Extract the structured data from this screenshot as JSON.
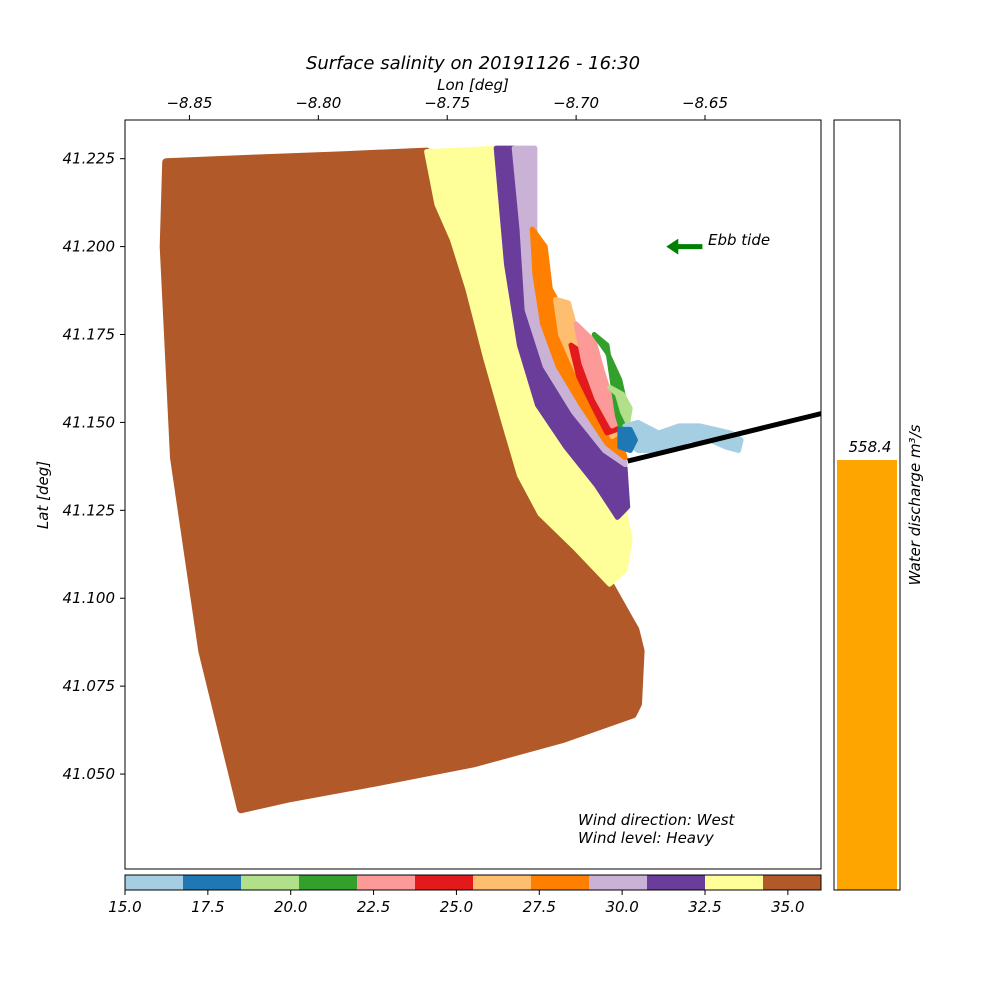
{
  "chart_data": [
    {
      "type": "scatter",
      "title": "Surface salinity on 20191126 - 16:30",
      "xlabel": "Lon [deg]",
      "ylabel": "Lat [deg]",
      "xlim": [
        -8.875,
        -8.605
      ],
      "ylim": [
        41.023,
        41.236
      ],
      "xticks": [
        -8.85,
        -8.8,
        -8.75,
        -8.7,
        -8.65
      ],
      "xtick_labels": [
        "−8.85",
        "−8.80",
        "−8.75",
        "−8.70",
        "−8.65"
      ],
      "yticks": [
        41.05,
        41.075,
        41.1,
        41.125,
        41.15,
        41.175,
        41.2,
        41.225
      ],
      "ytick_labels": [
        "41.050",
        "41.075",
        "41.100",
        "41.125",
        "41.150",
        "41.175",
        "41.200",
        "41.225"
      ],
      "x_axis_position": "top",
      "grid": false,
      "ocean_salinity": 35.5,
      "ocean_outline": [
        [
          -8.859,
          41.224
        ],
        [
          -8.826,
          41.225
        ],
        [
          -8.79,
          41.226
        ],
        [
          -8.758,
          41.227
        ],
        [
          -8.754,
          41.212
        ],
        [
          -8.748,
          41.202
        ],
        [
          -8.742,
          41.188
        ],
        [
          -8.735,
          41.168
        ],
        [
          -8.728,
          41.15
        ],
        [
          -8.722,
          41.135
        ],
        [
          -8.714,
          41.124
        ],
        [
          -8.7,
          41.114
        ],
        [
          -8.687,
          41.104
        ],
        [
          -8.677,
          41.091
        ],
        [
          -8.675,
          41.085
        ],
        [
          -8.676,
          41.07
        ],
        [
          -8.678,
          41.067
        ],
        [
          -8.705,
          41.06
        ],
        [
          -8.74,
          41.053
        ],
        [
          -8.775,
          41.048
        ],
        [
          -8.812,
          41.043
        ],
        [
          -8.83,
          41.04
        ],
        [
          -8.845,
          41.085
        ],
        [
          -8.856,
          41.14
        ],
        [
          -8.86,
          41.2
        ]
      ],
      "plume_bands": [
        {
          "salinity": 33.5,
          "points": [
            [
              -8.758,
              41.227
            ],
            [
              -8.73,
              41.228
            ],
            [
              -8.726,
              41.2
            ],
            [
              -8.72,
              41.17
            ],
            [
              -8.71,
              41.15
            ],
            [
              -8.7,
              41.14
            ],
            [
              -8.688,
              41.135
            ],
            [
              -8.682,
              41.127
            ],
            [
              -8.679,
              41.117
            ],
            [
              -8.681,
              41.108
            ],
            [
              -8.687,
              41.104
            ],
            [
              -8.7,
              41.114
            ],
            [
              -8.714,
              41.124
            ],
            [
              -8.722,
              41.135
            ],
            [
              -8.728,
              41.15
            ],
            [
              -8.735,
              41.168
            ],
            [
              -8.742,
              41.188
            ],
            [
              -8.748,
              41.202
            ],
            [
              -8.754,
              41.212
            ]
          ]
        },
        {
          "salinity": 31.7,
          "points": [
            [
              -8.731,
              41.228
            ],
            [
              -8.724,
              41.228
            ],
            [
              -8.722,
              41.21
            ],
            [
              -8.72,
              41.19
            ],
            [
              -8.716,
              41.172
            ],
            [
              -8.704,
              41.158
            ],
            [
              -8.695,
              41.148
            ],
            [
              -8.688,
              41.142
            ],
            [
              -8.681,
              41.137
            ],
            [
              -8.68,
              41.126
            ],
            [
              -8.684,
              41.123
            ],
            [
              -8.692,
              41.132
            ],
            [
              -8.704,
              41.143
            ],
            [
              -8.715,
              41.155
            ],
            [
              -8.722,
              41.172
            ],
            [
              -8.727,
              41.195
            ]
          ]
        },
        {
          "salinity": 29.8,
          "points": [
            [
              -8.724,
              41.228
            ],
            [
              -8.716,
              41.228
            ],
            [
              -8.716,
              41.205
            ],
            [
              -8.714,
              41.19
            ],
            [
              -8.709,
              41.176
            ],
            [
              -8.7,
              41.164
            ],
            [
              -8.69,
              41.152
            ],
            [
              -8.683,
              41.146
            ],
            [
              -8.681,
              41.138
            ],
            [
              -8.689,
              41.142
            ],
            [
              -8.701,
              41.153
            ],
            [
              -8.712,
              41.166
            ],
            [
              -8.719,
              41.182
            ],
            [
              -8.721,
              41.205
            ]
          ]
        },
        {
          "salinity": 28.0,
          "points": [
            [
              -8.717,
              41.205
            ],
            [
              -8.712,
              41.2
            ],
            [
              -8.71,
              41.188
            ],
            [
              -8.704,
              41.18
            ],
            [
              -8.7,
              41.17
            ],
            [
              -8.692,
              41.158
            ],
            [
              -8.685,
              41.15
            ],
            [
              -8.681,
              41.14
            ],
            [
              -8.688,
              41.144
            ],
            [
              -8.698,
              41.155
            ],
            [
              -8.707,
              41.166
            ],
            [
              -8.713,
              41.178
            ],
            [
              -8.716,
              41.192
            ]
          ]
        },
        {
          "salinity": 26.4,
          "points": [
            [
              -8.708,
              41.185
            ],
            [
              -8.703,
              41.184
            ],
            [
              -8.7,
              41.176
            ],
            [
              -8.692,
              41.165
            ],
            [
              -8.686,
              41.156
            ],
            [
              -8.682,
              41.148
            ],
            [
              -8.686,
              41.146
            ],
            [
              -8.693,
              41.156
            ],
            [
              -8.7,
              41.165
            ],
            [
              -8.706,
              41.175
            ]
          ]
        },
        {
          "salinity": 24.7,
          "points": [
            [
              -8.702,
              41.172
            ],
            [
              -8.698,
              41.17
            ],
            [
              -8.693,
              41.163
            ],
            [
              -8.688,
              41.155
            ],
            [
              -8.684,
              41.148
            ],
            [
              -8.688,
              41.147
            ],
            [
              -8.693,
              41.154
            ],
            [
              -8.699,
              41.163
            ]
          ]
        },
        {
          "salinity": 22.9,
          "points": [
            [
              -8.7,
              41.178
            ],
            [
              -8.693,
              41.173
            ],
            [
              -8.69,
              41.165
            ],
            [
              -8.687,
              41.158
            ],
            [
              -8.683,
              41.15
            ],
            [
              -8.686,
              41.149
            ],
            [
              -8.692,
              41.157
            ],
            [
              -8.697,
              41.167
            ]
          ]
        },
        {
          "salinity": 21.2,
          "points": [
            [
              -8.693,
              41.175
            ],
            [
              -8.688,
              41.172
            ],
            [
              -8.686,
              41.162
            ],
            [
              -8.684,
              41.152
            ],
            [
              -8.682,
              41.147
            ],
            [
              -8.68,
              41.152
            ],
            [
              -8.683,
              41.162
            ],
            [
              -8.688,
              41.17
            ]
          ]
        },
        {
          "salinity": 19.6,
          "points": [
            [
              -8.687,
              41.16
            ],
            [
              -8.684,
              41.158
            ],
            [
              -8.682,
              41.153
            ],
            [
              -8.68,
              41.15
            ],
            [
              -8.679,
              41.154
            ],
            [
              -8.682,
              41.158
            ]
          ]
        },
        {
          "salinity": 15.8,
          "points": [
            [
              -8.681,
              41.149
            ],
            [
              -8.676,
              41.15
            ],
            [
              -8.668,
              41.147
            ],
            [
              -8.66,
              41.149
            ],
            [
              -8.652,
              41.149
            ],
            [
              -8.646,
              41.148
            ],
            [
              -8.64,
              41.147
            ],
            [
              -8.636,
              41.145
            ],
            [
              -8.637,
              41.142
            ],
            [
              -8.642,
              41.143
            ],
            [
              -8.648,
              41.145
            ],
            [
              -8.656,
              41.145
            ],
            [
              -8.663,
              41.143
            ],
            [
              -8.669,
              41.142
            ],
            [
              -8.676,
              41.142
            ],
            [
              -8.681,
              41.145
            ]
          ]
        },
        {
          "salinity": 17.5,
          "points": [
            [
              -8.683,
              41.148
            ],
            [
              -8.679,
              41.148
            ],
            [
              -8.677,
              41.145
            ],
            [
              -8.679,
              41.142
            ],
            [
              -8.683,
              41.143
            ]
          ]
        }
      ],
      "colorbar": {
        "min": 15.0,
        "max": 36.0,
        "orientation": "horizontal",
        "tick_values": [
          15.0,
          17.5,
          20.0,
          22.5,
          25.0,
          27.5,
          30.0,
          32.5,
          35.0
        ],
        "tick_labels": [
          "15.0",
          "17.5",
          "20.0",
          "22.5",
          "25.0",
          "27.5",
          "30.0",
          "32.5",
          "35.0"
        ],
        "colors": [
          "#a6cee3",
          "#1f78b4",
          "#b2df8a",
          "#33a02c",
          "#fb9a99",
          "#e31a1c",
          "#fdbf6f",
          "#ff7f00",
          "#cab2d6",
          "#6a3d9a",
          "#ffff99",
          "#b15928"
        ]
      },
      "annotations": {
        "tide_label": "Ebb tide",
        "tide_arrow_lon": [
          -8.651,
          -8.665
        ],
        "tide_arrow_lat": 41.2,
        "tide_arrow_color": "#008000",
        "wind_direction": "Wind direction: West",
        "wind_level": "Wind level: Heavy",
        "wind_line": [
          [
            -8.68,
            41.139
          ],
          [
            -8.605,
            41.1525
          ]
        ],
        "wind_line_color": "#000000"
      }
    },
    {
      "type": "bar",
      "categories": [
        ""
      ],
      "values": [
        558.4
      ],
      "value_label": "558.4",
      "ylabel": "Water discharge m³/s",
      "ylim": [
        0,
        1000
      ],
      "color": "#ffa500"
    }
  ]
}
